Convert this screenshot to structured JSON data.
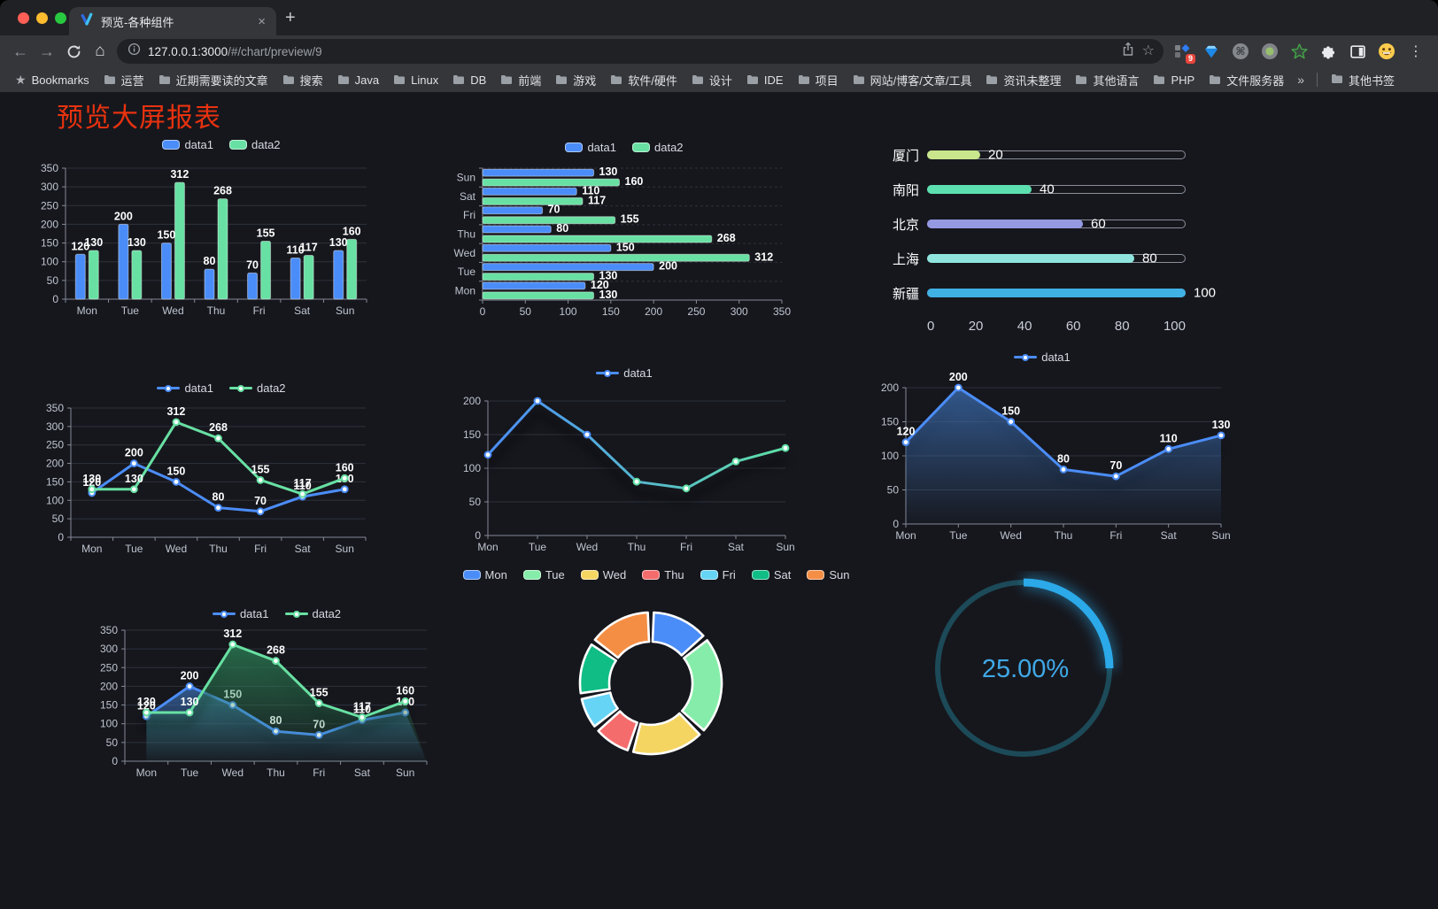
{
  "browser": {
    "tab": {
      "title": "预览-各种组件"
    },
    "toolbar": {
      "url_host": "127.0.0.1:3000",
      "url_path": "/#/chart/preview/9",
      "extension_badge": "9"
    },
    "bookmarks": {
      "root_label": "Bookmarks",
      "items": [
        "运营",
        "近期需要读的文章",
        "搜索",
        "Java",
        "Linux",
        "DB",
        "前端",
        "游戏",
        "软件/硬件",
        "设计",
        "IDE",
        "项目",
        "网站/博客/文章/工具",
        "资讯未整理",
        "其他语言",
        "PHP",
        "文件服务器"
      ],
      "overflow_glyph": "»",
      "other_label": "其他书签"
    }
  },
  "icons": {
    "close": "×",
    "plus": "+",
    "back": "←",
    "forward": "→",
    "home": "⌂",
    "star_outline": "☆",
    "bookmarks_star": "★",
    "menu": "⋮",
    "command": "⌘"
  },
  "page": {
    "title": "预览大屏报表",
    "title_color": "#E8320F"
  },
  "chart_data": [
    {
      "type": "bar",
      "categories": [
        "Mon",
        "Tue",
        "Wed",
        "Thu",
        "Fri",
        "Sat",
        "Sun"
      ],
      "series": [
        {
          "name": "data1",
          "color": "#4B8DF8",
          "values": [
            120,
            200,
            150,
            80,
            70,
            110,
            130
          ]
        },
        {
          "name": "data2",
          "color": "#68E0A3",
          "values": [
            130,
            130,
            312,
            268,
            155,
            117,
            160
          ]
        }
      ],
      "ylim": [
        0,
        350
      ],
      "ystep": 50,
      "labels": true,
      "legend_marker": "rect"
    },
    {
      "type": "hbar",
      "categories": [
        "Sun",
        "Sat",
        "Fri",
        "Thu",
        "Wed",
        "Tue",
        "Mon"
      ],
      "series": [
        {
          "name": "data1",
          "color": "#4B8DF8",
          "values": [
            130,
            110,
            70,
            80,
            150,
            200,
            120
          ]
        },
        {
          "name": "data2",
          "color": "#68E0A3",
          "values": [
            160,
            117,
            155,
            268,
            312,
            130,
            130
          ]
        }
      ],
      "xlim": [
        0,
        350
      ],
      "xstep": 50,
      "labels": true,
      "legend_marker": "rect"
    },
    {
      "type": "progress",
      "items": [
        {
          "label": "厦门",
          "value": 20,
          "color": "#C9E68C"
        },
        {
          "label": "南阳",
          "value": 40,
          "color": "#5CE0AF"
        },
        {
          "label": "北京",
          "value": 60,
          "color": "#9599E2"
        },
        {
          "label": "上海",
          "value": 80,
          "color": "#8FE5DE"
        },
        {
          "label": "新疆",
          "value": 100,
          "color": "#3FB1E3"
        }
      ],
      "axis_ticks": [
        0,
        20,
        40,
        60,
        80,
        100
      ],
      "xlim": [
        0,
        100
      ]
    },
    {
      "type": "line",
      "categories": [
        "Mon",
        "Tue",
        "Wed",
        "Thu",
        "Fri",
        "Sat",
        "Sun"
      ],
      "series": [
        {
          "name": "data1",
          "color": "#4B8DF8",
          "values": [
            120,
            200,
            150,
            80,
            70,
            110,
            130
          ]
        },
        {
          "name": "data2",
          "color": "#68E0A3",
          "values": [
            130,
            130,
            312,
            268,
            155,
            117,
            160
          ]
        }
      ],
      "ylim": [
        0,
        350
      ],
      "ystep": 50,
      "labels": true,
      "boundary_gap": true,
      "legend_marker": "line"
    },
    {
      "type": "line",
      "categories": [
        "Mon",
        "Tue",
        "Wed",
        "Thu",
        "Fri",
        "Sat",
        "Sun"
      ],
      "series": [
        {
          "name": "data1",
          "color": "#4B8DF8",
          "gradient": [
            "#4B8DF8",
            "#5FE0A6"
          ],
          "values": [
            120,
            200,
            150,
            80,
            70,
            110,
            130
          ]
        }
      ],
      "ylim": [
        0,
        200
      ],
      "ystep": 50,
      "labels": false,
      "shadow": true,
      "boundary_gap": false,
      "legend_marker": "line"
    },
    {
      "type": "line",
      "categories": [
        "Mon",
        "Tue",
        "Wed",
        "Thu",
        "Fri",
        "Sat",
        "Sun"
      ],
      "series": [
        {
          "name": "data1",
          "color": "#4B8DF8",
          "area": "#3E72B8",
          "values": [
            120,
            200,
            150,
            80,
            70,
            110,
            130
          ]
        }
      ],
      "ylim": [
        0,
        200
      ],
      "ystep": 50,
      "labels": true,
      "shadow": true,
      "boundary_gap": false,
      "legend_marker": "line"
    },
    {
      "type": "line",
      "categories": [
        "Mon",
        "Tue",
        "Wed",
        "Thu",
        "Fri",
        "Sat",
        "Sun"
      ],
      "series": [
        {
          "name": "data1",
          "color": "#4B8DF8",
          "area": "#3E72B8",
          "values": [
            120,
            200,
            150,
            80,
            70,
            110,
            130
          ]
        },
        {
          "name": "data2",
          "color": "#68E0A3",
          "area": "#2F8A5B",
          "values": [
            130,
            130,
            312,
            268,
            155,
            117,
            160
          ]
        }
      ],
      "ylim": [
        0,
        350
      ],
      "ystep": 50,
      "labels": true,
      "shadow": true,
      "boundary_gap": true,
      "legend_marker": "line"
    },
    {
      "type": "donut",
      "categories": [
        "Mon",
        "Tue",
        "Wed",
        "Thu",
        "Fri",
        "Sat",
        "Sun"
      ],
      "values": [
        120,
        200,
        150,
        80,
        70,
        110,
        130
      ],
      "colors": [
        "#4B8DF8",
        "#85EDA9",
        "#F5D561",
        "#F56C6C",
        "#66D4F5",
        "#0FBD85",
        "#F58E45"
      ],
      "legend_marker": "rect"
    },
    {
      "type": "gauge",
      "value": 25,
      "label": "25.00%",
      "arc_color": "#2BA9E8",
      "track_color": "#1C4A58",
      "text_color": "#3FA9E8"
    }
  ]
}
